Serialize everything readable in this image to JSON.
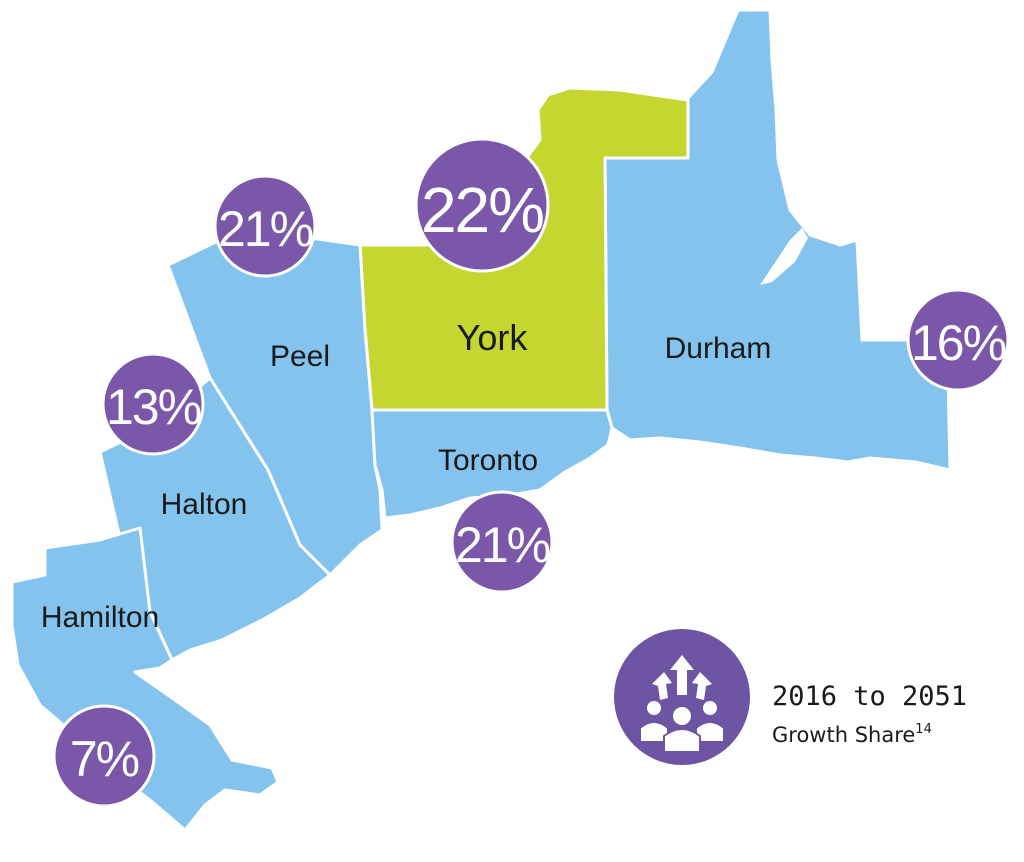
{
  "colors": {
    "region_fill": "#84c3ee",
    "highlight_fill": "#c5d631",
    "badge_fill": "#7a57a8",
    "text": "#1a1a1a"
  },
  "regions": {
    "york": {
      "label": "York",
      "share": "22%",
      "highlighted": true
    },
    "peel": {
      "label": "Peel",
      "share": "21%"
    },
    "durham": {
      "label": "Durham",
      "share": "16%"
    },
    "toronto": {
      "label": "Toronto",
      "share": "21%"
    },
    "halton": {
      "label": "Halton",
      "share": "13%"
    },
    "hamilton": {
      "label": "Hamilton",
      "share": "7%"
    }
  },
  "legend": {
    "icon": "people-growth-arrows-icon",
    "title": "2016 to 2051",
    "subtitle": "Growth Share",
    "footnote": "14"
  }
}
